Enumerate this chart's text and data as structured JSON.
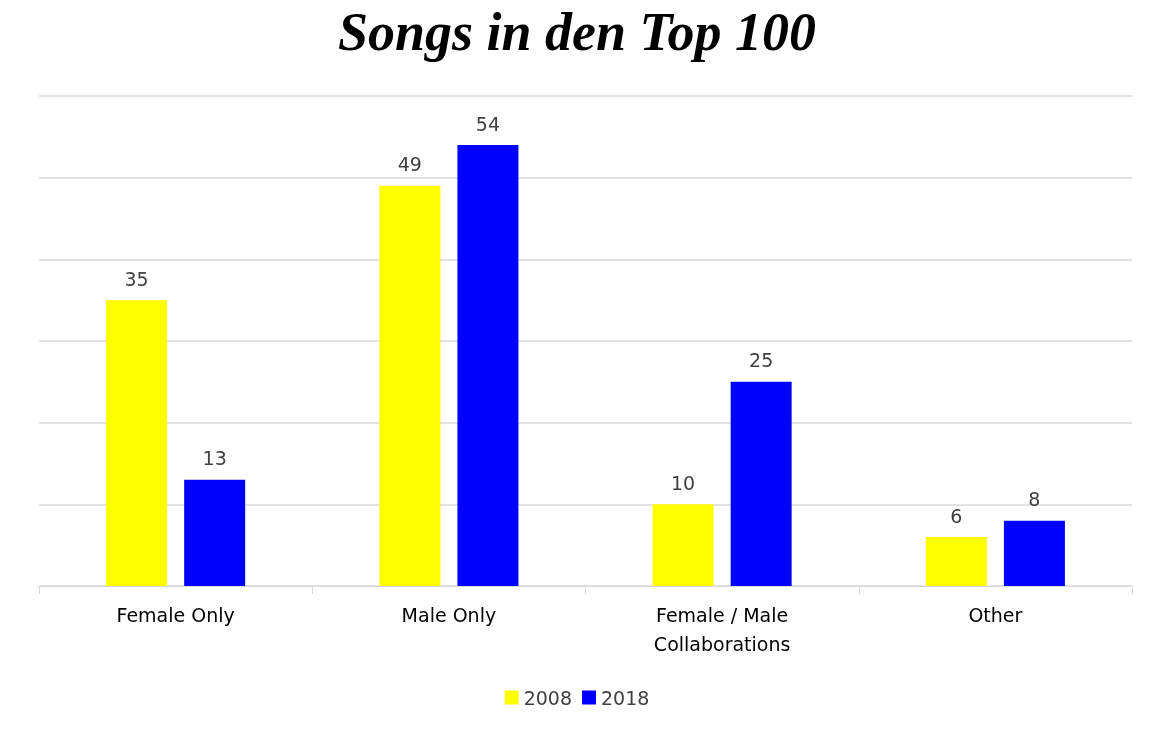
{
  "chart_data": {
    "type": "bar",
    "title": "Songs in den Top 100",
    "categories": [
      "Female Only",
      "Male Only",
      "Female / Male\nCollaborations",
      "Other"
    ],
    "series": [
      {
        "name": "2008",
        "color": "#ffff00",
        "values": [
          35,
          49,
          10,
          6
        ]
      },
      {
        "name": "2018",
        "color": "#0000ff",
        "values": [
          13,
          54,
          25,
          8
        ]
      }
    ],
    "ylim": [
      0,
      60
    ],
    "yticks": [
      {
        "value": 0,
        "label": null
      },
      {
        "value": 10,
        "label": null
      },
      {
        "value": 20,
        "label": null
      },
      {
        "value": 30,
        "label": null
      },
      {
        "value": 40,
        "label": null
      },
      {
        "value": 50,
        "label": null
      },
      {
        "value": 60,
        "label": null
      }
    ],
    "tick_labels": "x",
    "grid": "y",
    "data_labels": true,
    "legend": "bottom"
  }
}
